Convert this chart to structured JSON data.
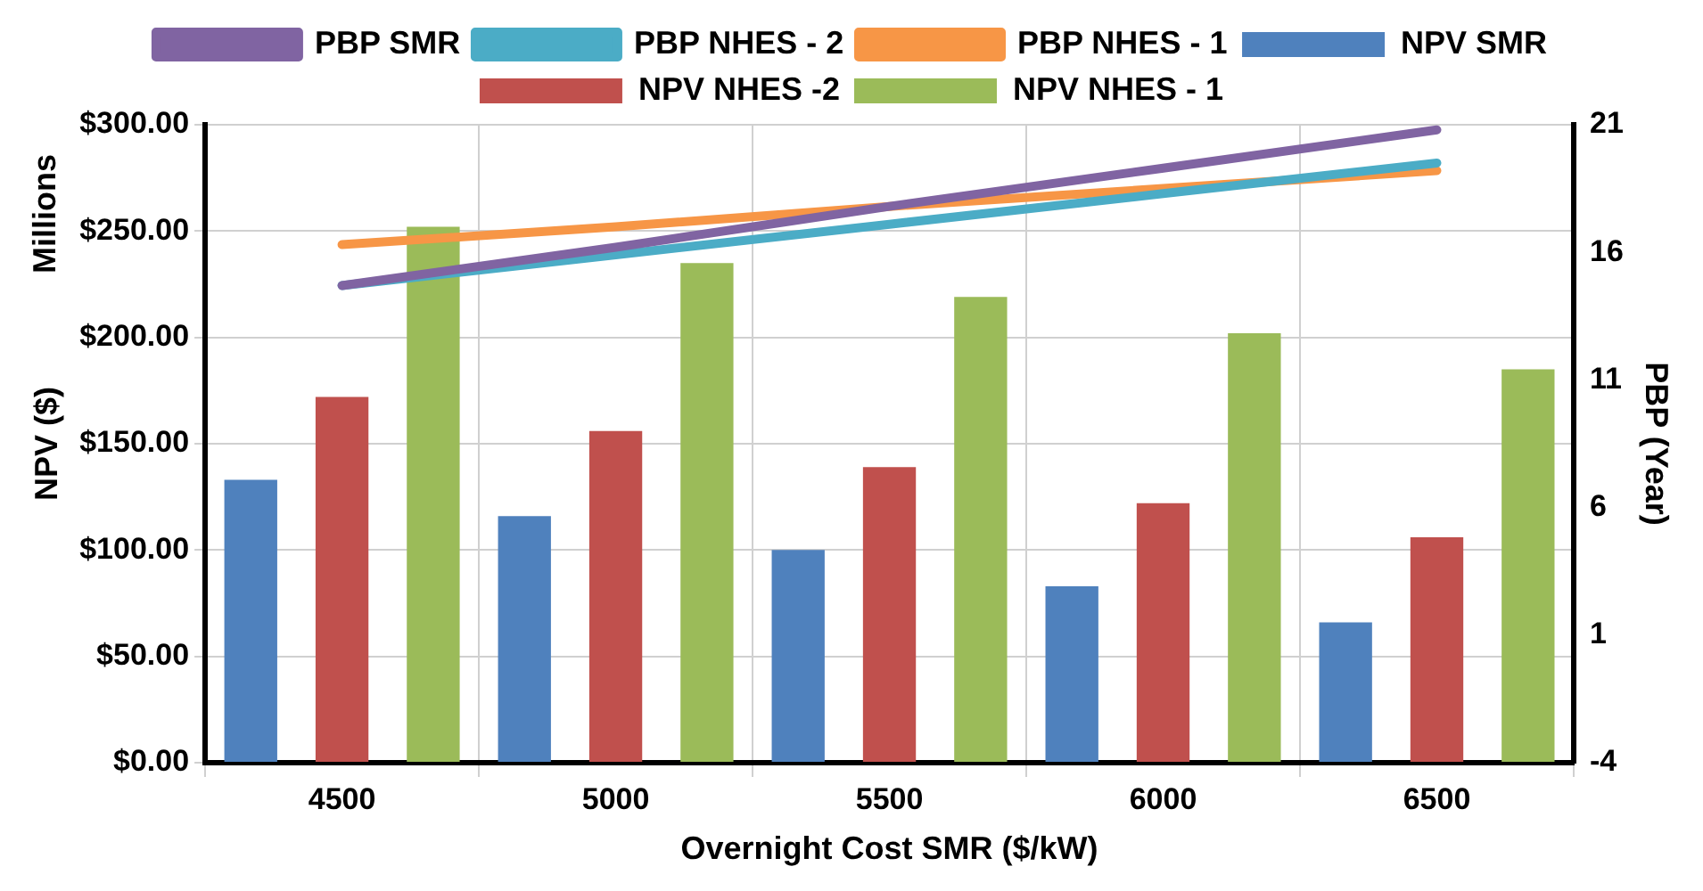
{
  "chart_data": {
    "type": "bar",
    "categories": [
      "4500",
      "5000",
      "5500",
      "6000",
      "6500"
    ],
    "xlabel": "Overnight Cost SMR ($/kW)",
    "ylabel": "NPV ($)",
    "y2label": "PBP (Year)",
    "annotations": [
      "Millions"
    ],
    "series": [
      {
        "name": "NPV SMR",
        "color": "#4f81bd",
        "values": [
          133,
          116,
          100,
          83,
          66
        ]
      },
      {
        "name": "NPV NHES -2",
        "color": "#c0504d",
        "values": [
          172,
          156,
          139,
          122,
          106
        ]
      },
      {
        "name": "NPV NHES - 1",
        "color": "#9bbb59",
        "values": [
          252,
          235,
          219,
          202,
          185
        ]
      },
      {
        "name": "PBP SMR",
        "type": "line",
        "axis": "y2",
        "color": "#8064a2",
        "values": [
          14.7,
          16.2,
          17.8,
          19.3,
          20.8
        ]
      },
      {
        "name": "PBP NHES - 2",
        "type": "line",
        "axis": "y2",
        "color": "#4bacc6",
        "values": [
          14.7,
          15.9,
          17.1,
          18.3,
          19.5
        ]
      },
      {
        "name": "PBP NHES - 1",
        "type": "line",
        "axis": "y2",
        "color": "#f79646",
        "values": [
          16.3,
          17.0,
          17.8,
          18.5,
          19.2
        ]
      }
    ],
    "ylim": [
      0,
      300
    ],
    "yticks": [
      {
        "value": 0,
        "label": "$0.00"
      },
      {
        "value": 50,
        "label": "$50.00"
      },
      {
        "value": 100,
        "label": "$100.00"
      },
      {
        "value": 150,
        "label": "$150.00"
      },
      {
        "value": 200,
        "label": "$200.00"
      },
      {
        "value": 250,
        "label": "$250.00"
      },
      {
        "value": 300,
        "label": "$300.00"
      }
    ],
    "y2lim": [
      -4,
      21
    ],
    "y2ticks": [
      -4,
      1,
      6,
      11,
      16,
      21
    ],
    "grid": true,
    "legend": "top",
    "marker": "none",
    "line_style": "solid"
  }
}
